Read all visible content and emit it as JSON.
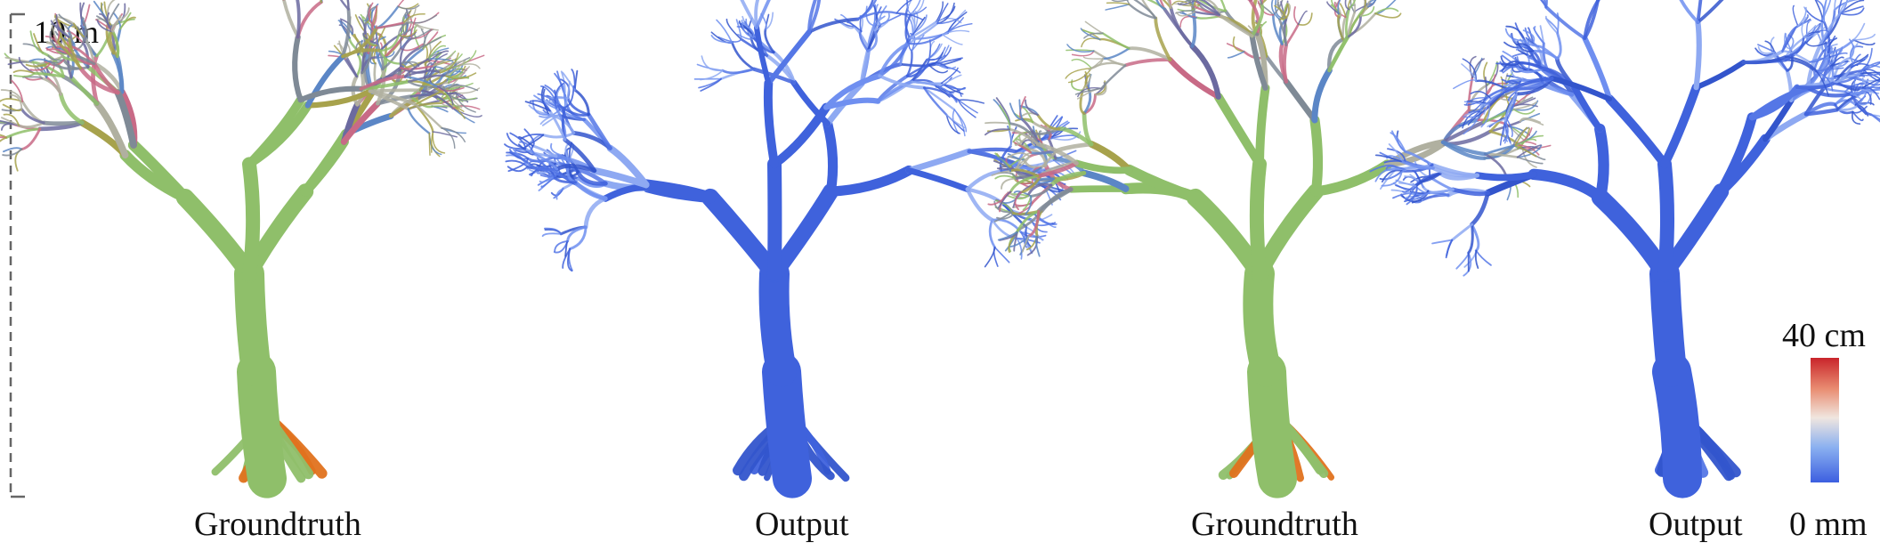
{
  "scale": {
    "label": "10 m"
  },
  "panels": [
    {
      "caption": "Groundtruth",
      "style": "multicolor"
    },
    {
      "caption": "Output",
      "style": "blue"
    },
    {
      "caption": "Groundtruth",
      "style": "multicolor"
    },
    {
      "caption": "Output",
      "style": "blue"
    }
  ],
  "colorbar": {
    "max_label": "40 cm",
    "min_label": "0 mm",
    "colors": [
      "#c9252b",
      "#f0e6df",
      "#3c5fe0"
    ]
  },
  "colors": {
    "trunk_green": "#8fbf6a",
    "root_orange": "#e0721e",
    "branch_blue": "#3f62dc",
    "branch_purple": "#6b6aa0",
    "branch_pink": "#c86a86",
    "branch_olive": "#a7a24c"
  }
}
